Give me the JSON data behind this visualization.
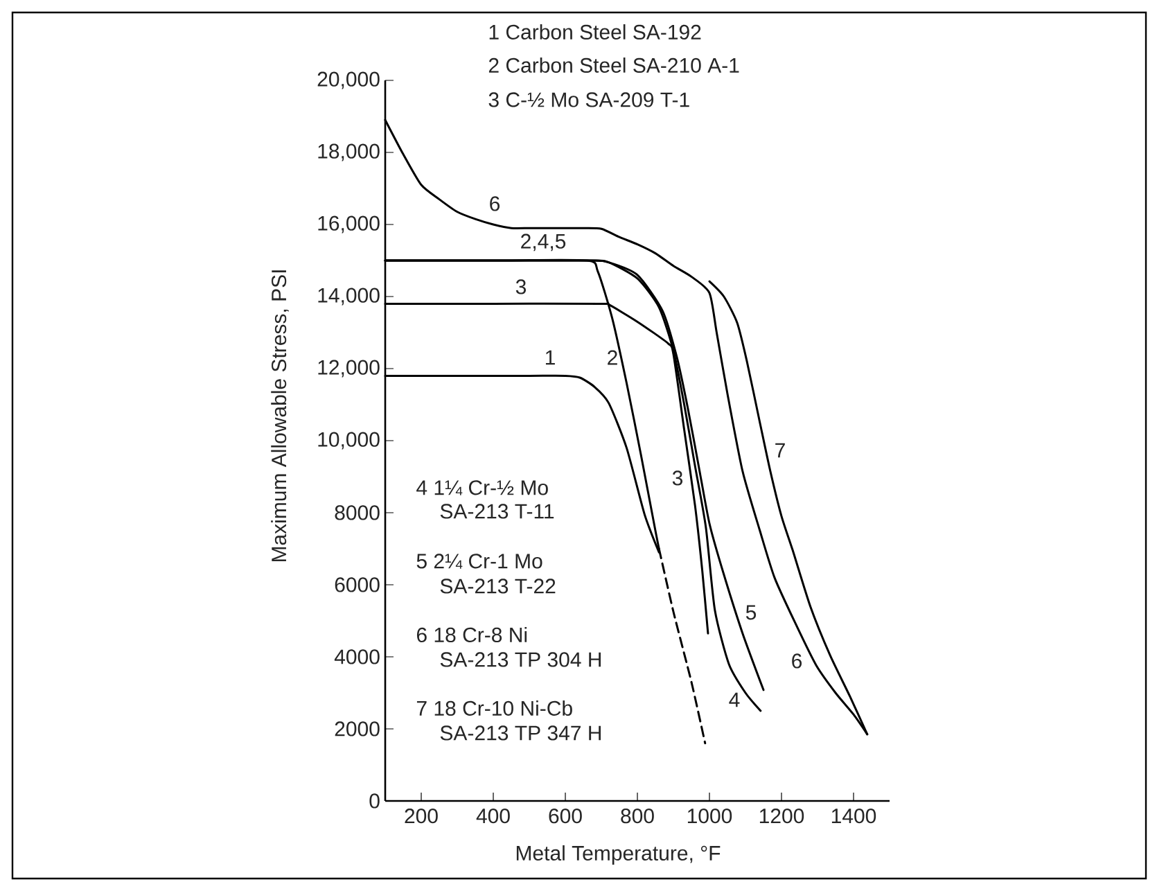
{
  "chart_data": {
    "type": "line",
    "xlabel": "Metal Temperature, °F",
    "ylabel": "Maximum Allowable Stress, PSI",
    "xlim": [
      100,
      1500
    ],
    "ylim": [
      0,
      20000
    ],
    "xticks": [
      200,
      400,
      600,
      800,
      1000,
      1200,
      1400
    ],
    "yticks": [
      0,
      2000,
      4000,
      6000,
      8000,
      {
        "value": 10000,
        "label": "10,000"
      },
      {
        "value": 12000,
        "label": "12,000"
      },
      {
        "value": 14000,
        "label": "14,000"
      },
      {
        "value": 16000,
        "label": "16,000"
      },
      {
        "value": 18000,
        "label": "18,000"
      },
      {
        "value": 20000,
        "label": "20,000"
      }
    ],
    "marker": "none",
    "series": [
      {
        "color": "#000000",
        "line_style": "solid",
        "x": [
          100,
          300,
          500,
          600,
          640,
          680,
          720,
          770,
          820,
          860
        ],
        "values": [
          11800,
          11800,
          11800,
          11800,
          11750,
          11500,
          11050,
          9800,
          7950,
          6900
        ]
      },
      {
        "color": "#000000",
        "line_style": "solid",
        "x": [
          100,
          400,
          660,
          690,
          730,
          770,
          810,
          850,
          860
        ],
        "values": [
          15000,
          15000,
          15000,
          14700,
          13400,
          11600,
          9600,
          7500,
          7000
        ]
      },
      {
        "color": "#000000",
        "line_style": "dashed",
        "x": [
          860,
          900,
          950,
          988
        ],
        "values": [
          7000,
          5250,
          3300,
          1600
        ]
      },
      {
        "color": "#000000",
        "line_style": "solid",
        "x": [
          100,
          400,
          700,
          720,
          800,
          885,
          900,
          930,
          960,
          980,
          996
        ],
        "values": [
          13800,
          13800,
          13800,
          13780,
          13300,
          12700,
          12400,
          10300,
          8200,
          6400,
          4650
        ]
      },
      {
        "color": "#000000",
        "line_style": "solid",
        "x": [
          100,
          400,
          670,
          720,
          800,
          860,
          900,
          930,
          960,
          990,
          1015,
          1054,
          1100,
          1142
        ],
        "values": [
          15000,
          15000,
          15000,
          14950,
          14500,
          13700,
          12500,
          11000,
          9300,
          7600,
          5300,
          3800,
          3000,
          2500
        ]
      },
      {
        "color": "#000000",
        "line_style": "solid",
        "x": [
          100,
          400,
          670,
          720,
          800,
          870,
          910,
          940,
          970,
          1000,
          1038,
          1092,
          1150
        ],
        "values": [
          15000,
          15000,
          15000,
          14950,
          14600,
          13600,
          12300,
          10900,
          9300,
          7700,
          6350,
          4650,
          3080
        ]
      },
      {
        "color": "#000000",
        "line_style": "solid",
        "x": [
          100,
          150,
          200,
          250,
          300,
          350,
          400,
          450,
          500,
          550,
          600,
          650,
          700,
          750,
          800,
          850,
          900,
          950,
          1000,
          1020,
          1050,
          1092,
          1140,
          1181,
          1240,
          1296,
          1350,
          1400,
          1438
        ],
        "values": [
          18900,
          17950,
          17100,
          16700,
          16350,
          16150,
          16000,
          15900,
          15900,
          15900,
          15900,
          15900,
          15880,
          15650,
          15450,
          15200,
          14850,
          14550,
          14100,
          13000,
          11300,
          9150,
          7500,
          6190,
          4900,
          3770,
          3000,
          2400,
          1850
        ]
      },
      {
        "color": "#000000",
        "line_style": "solid",
        "x": [
          1000,
          1040,
          1077,
          1104,
          1140,
          1169,
          1200,
          1231,
          1280,
          1335,
          1390,
          1438
        ],
        "values": [
          14420,
          14000,
          13270,
          12200,
          10500,
          9150,
          7900,
          6960,
          5400,
          4040,
          2900,
          1850
        ]
      }
    ],
    "annotations": [
      "1 Carbon Steel SA-192",
      "2 Carbon Steel SA-210 A-1",
      "3 C-½ Mo  SA-209 T-1",
      "4 1¼ Cr-½ Mo",
      "SA-213 T-11",
      "5 2¼ Cr-1 Mo",
      "SA-213 T-22",
      "6 18 Cr-8 Ni",
      "SA-213 TP 304 H",
      "7 18 Cr-10 Ni-Cb",
      "SA-213 TP 347 H",
      "6",
      "2,4,5",
      "3",
      "1",
      "2",
      "3",
      "7",
      "5",
      "6",
      "4"
    ]
  }
}
